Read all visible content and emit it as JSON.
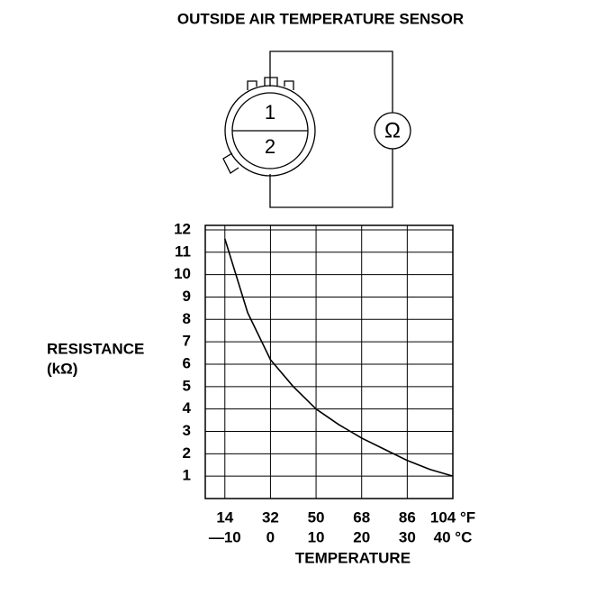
{
  "title": "OUTSIDE AIR TEMPERATURE SENSOR",
  "diagram": {
    "pins": [
      "1",
      "2"
    ],
    "meter": "Ω"
  },
  "chart_data": {
    "type": "line",
    "y_label": "RESISTANCE",
    "y_unit": "(kΩ)",
    "x_label": "TEMPERATURE",
    "x": [
      -10,
      -5,
      0,
      5,
      10,
      15,
      20,
      25,
      30,
      35,
      40
    ],
    "series": [
      {
        "color": "#000000",
        "values": [
          11.6,
          8.3,
          6.2,
          5.0,
          4.0,
          3.3,
          2.7,
          2.2,
          1.7,
          1.3,
          1.0
        ]
      }
    ],
    "xlim": [
      -14.3,
      40
    ],
    "ylim": [
      0,
      12.2
    ],
    "xticks": [
      {
        "value": -10,
        "label": "—10"
      },
      0,
      10,
      20,
      30,
      {
        "value": 40,
        "label": "40 °C"
      }
    ],
    "x2lim": [
      6.26,
      104
    ],
    "x2ticks": [
      14,
      32,
      50,
      68,
      86,
      {
        "value": 104,
        "label": "104 °F"
      }
    ],
    "yticks": [
      1,
      2,
      3,
      4,
      5,
      6,
      7,
      8,
      9,
      10,
      11,
      12
    ],
    "grid": true
  }
}
